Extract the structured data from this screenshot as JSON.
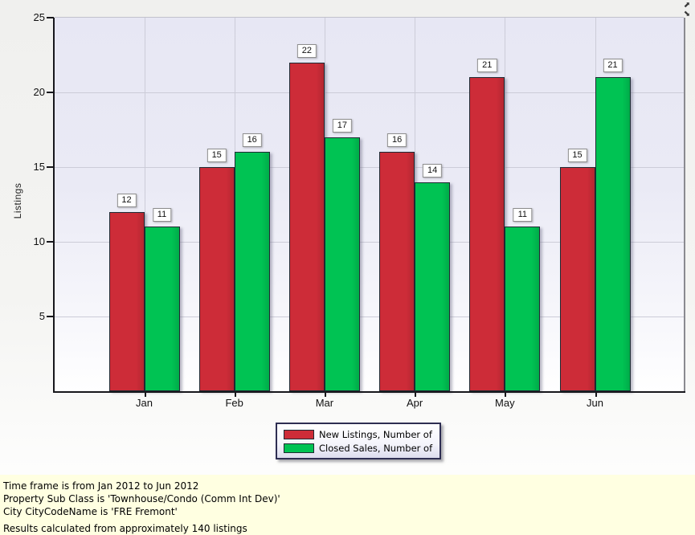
{
  "chart_data": {
    "type": "bar",
    "title": "",
    "xlabel": "",
    "ylabel": "Listings",
    "categories": [
      "Jan",
      "Feb",
      "Mar",
      "Apr",
      "May",
      "Jun"
    ],
    "series": [
      {
        "name": "New Listings, Number of",
        "color": "#cd2c38",
        "values": [
          12,
          15,
          22,
          16,
          21,
          15
        ]
      },
      {
        "name": "Closed Sales, Number of",
        "color": "#00c353",
        "values": [
          11,
          16,
          17,
          14,
          11,
          21
        ]
      }
    ],
    "ylim": [
      0,
      25
    ],
    "yticks": [
      5,
      10,
      15,
      20,
      25
    ],
    "grid": true,
    "bar_value_labels": true,
    "legend_position": "bottom-center"
  },
  "colors": {
    "new_listings_red": "#cd2c38",
    "closed_sales_green": "#00c353",
    "plot_bg_top": "#e7e7f4",
    "plot_bg_bottom": "#ffffff",
    "footer_bg": "#ffffe1",
    "value_label_bg": "#ffffff"
  },
  "controls": {
    "top_right_icons": [
      {
        "name": "resize-arrow-ne-icon",
        "glyph": "⬈"
      },
      {
        "name": "resize-arrow-se-icon",
        "glyph": "⬊"
      }
    ]
  },
  "footer": {
    "lines": [
      "Time frame is from Jan 2012 to Jun 2012",
      "Property Sub Class is 'Townhouse/Condo (Comm Int Dev)'",
      "City CityCodeName is 'FRE Fremont'"
    ],
    "results_line": "Results calculated from approximately 140 listings"
  }
}
